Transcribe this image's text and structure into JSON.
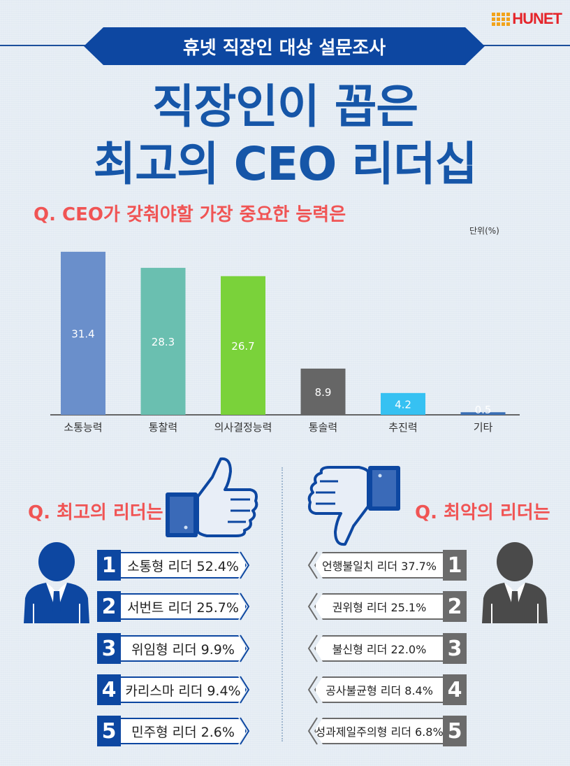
{
  "brand": {
    "logo_text": "HUNET",
    "logo_color": "#e5252b",
    "dots_color": "#f2a31b"
  },
  "banner": {
    "text": "휴넷 직장인 대상 설문조사",
    "color": "#0d47a1"
  },
  "title": {
    "line1": "직장인이 꼽은",
    "line2": "최고의 CEO 리더십",
    "color": "#1656a8"
  },
  "question_main": "Q. CEO가 갖춰야할 가장 중요한 능력은",
  "unit_label": "단위(%)",
  "chart_data": {
    "type": "bar",
    "categories": [
      "소통능력",
      "통찰력",
      "의사결정능력",
      "통솔력",
      "추진력",
      "기타"
    ],
    "values": [
      31.4,
      28.3,
      26.7,
      8.9,
      4.2,
      0.5
    ],
    "value_labels": [
      "31.4",
      "28.3",
      "26.7",
      "8.9",
      "4.2",
      "0.5"
    ],
    "colors": [
      "#6a8fcb",
      "#6abfb0",
      "#7ad23a",
      "#666666",
      "#36c1f2",
      "#3a6fb5"
    ],
    "ylim": [
      0,
      33
    ],
    "unit": "%"
  },
  "best": {
    "question": "Q. 최고의 리더는",
    "items": [
      {
        "rank": "1",
        "label": "소통형 리더 52.4%"
      },
      {
        "rank": "2",
        "label": "서번트 리더 25.7%"
      },
      {
        "rank": "3",
        "label": "위임형 리더 9.9%"
      },
      {
        "rank": "4",
        "label": "카리스마 리더 9.4%"
      },
      {
        "rank": "5",
        "label": "민주형 리더 2.6%"
      }
    ],
    "color": "#0d47a1"
  },
  "worst": {
    "question": "Q. 최악의 리더는",
    "items": [
      {
        "rank": "1",
        "label": "언행불일치 리더 37.7%"
      },
      {
        "rank": "2",
        "label": "권위형 리더 25.1%"
      },
      {
        "rank": "3",
        "label": "불신형 리더 22.0%"
      },
      {
        "rank": "4",
        "label": "공사불균형 리더 8.4%"
      },
      {
        "rank": "5",
        "label": "성과제일주의형 리더 6.8%"
      }
    ],
    "color": "#6b6b6b"
  },
  "icons": [
    "thumbs-up-icon",
    "thumbs-down-icon",
    "businessman-blue-icon",
    "businessman-gray-icon"
  ]
}
